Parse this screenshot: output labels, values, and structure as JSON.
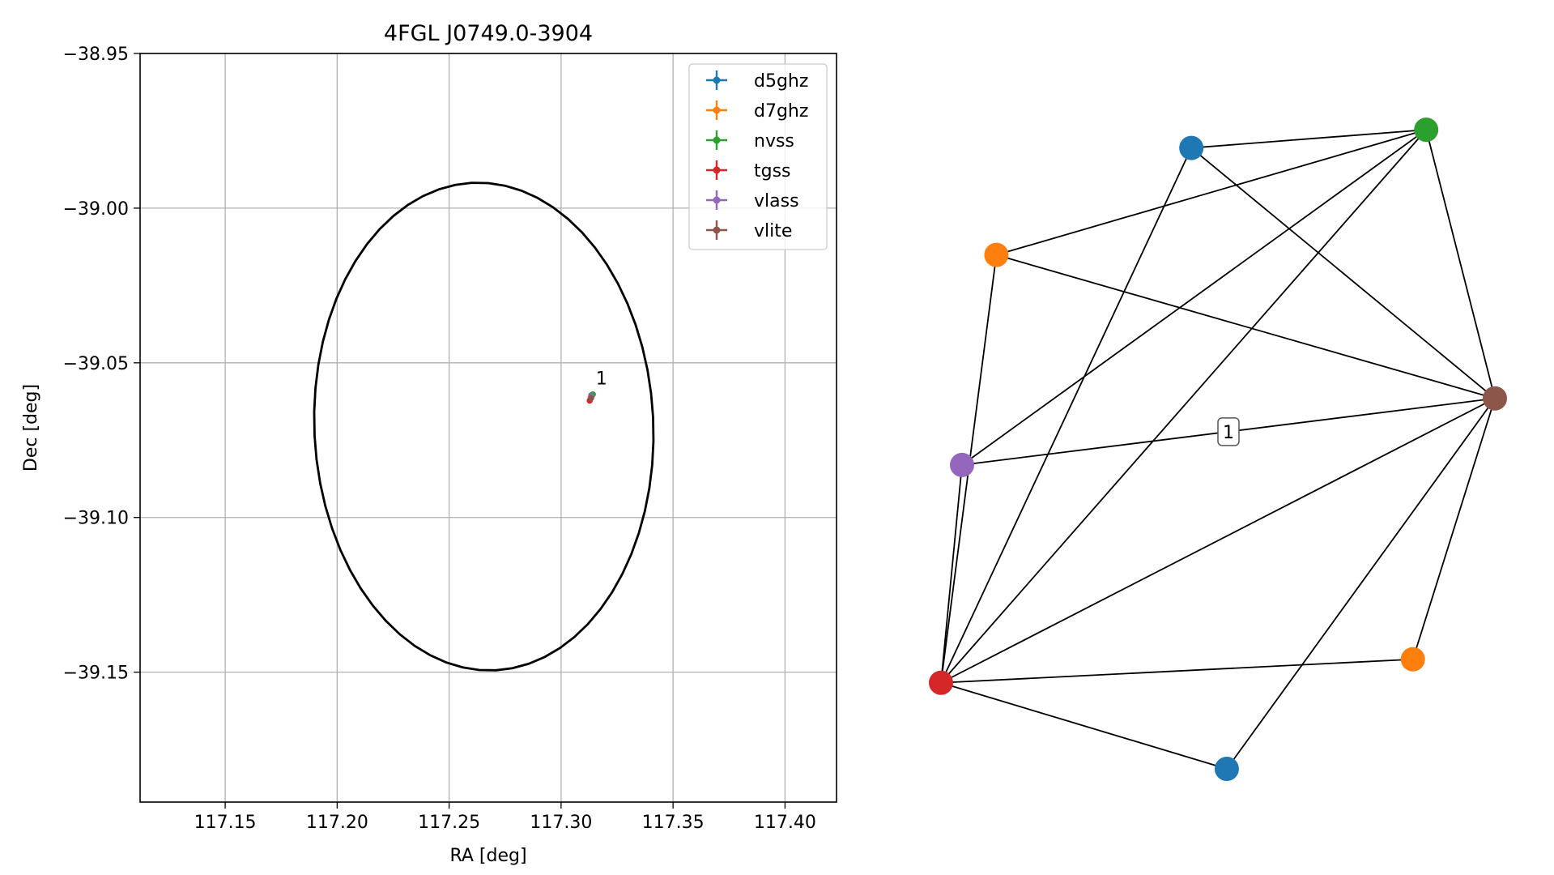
{
  "chart_data": [
    {
      "type": "scatter",
      "title": "4FGL J0749.0-3904",
      "xlabel": "RA [deg]",
      "ylabel": "Dec [deg]",
      "xlim": [
        117.112,
        117.423
      ],
      "ylim": [
        -39.192,
        -38.95
      ],
      "x_ticks": [
        117.15,
        117.2,
        117.25,
        117.3,
        117.35,
        117.4
      ],
      "x_tick_labels": [
        "117.15",
        "117.20",
        "117.25",
        "117.30",
        "117.35",
        "117.40"
      ],
      "y_ticks": [
        -38.95,
        -39.0,
        -39.05,
        -39.1,
        -39.15
      ],
      "y_tick_labels": [
        "−38.95",
        "−39.00",
        "−39.05",
        "−39.10",
        "−39.15"
      ],
      "grid": true,
      "legend_position": "top-right",
      "series": [
        {
          "name": "d5ghz",
          "color": "#1f77b4",
          "points": [
            {
              "x": 117.3135,
              "y": -39.0605
            }
          ]
        },
        {
          "name": "d7ghz",
          "color": "#ff7f0e",
          "points": [
            {
              "x": 117.3132,
              "y": -39.0612
            }
          ]
        },
        {
          "name": "nvss",
          "color": "#2ca02c",
          "points": [
            {
              "x": 117.3142,
              "y": -39.0602
            }
          ]
        },
        {
          "name": "tgss",
          "color": "#d62728",
          "points": [
            {
              "x": 117.3128,
              "y": -39.0622
            }
          ]
        },
        {
          "name": "vlass",
          "color": "#9467bd",
          "points": [
            {
              "x": 117.3136,
              "y": -39.0608
            }
          ]
        },
        {
          "name": "vlite",
          "color": "#8c564b",
          "points": [
            {
              "x": 117.3134,
              "y": -39.0614
            }
          ]
        }
      ],
      "annotations": [
        {
          "text": "1",
          "x": 117.3155,
          "y": -39.057
        }
      ],
      "ellipse": {
        "center_x": 117.2655,
        "center_y": -39.0706,
        "semi_major": 0.0793,
        "semi_minor": 0.0753,
        "angle_deg": -70,
        "color": "#000000"
      }
    },
    {
      "type": "network",
      "nodes": [
        {
          "id": "n0",
          "color": "#1f77b4",
          "x": 0.452,
          "y": 0.952
        },
        {
          "id": "n1",
          "color": "#ff7f0e",
          "x": 0.1,
          "y": 0.788
        },
        {
          "id": "n2",
          "color": "#2ca02c",
          "x": 0.876,
          "y": 0.98
        },
        {
          "id": "n3",
          "color": "#d62728",
          "x": 0.0,
          "y": 0.132
        },
        {
          "id": "n4",
          "color": "#9467bd",
          "x": 0.038,
          "y": 0.466
        },
        {
          "id": "n5",
          "color": "#8c564b",
          "x": 1.0,
          "y": 0.568
        },
        {
          "id": "n6",
          "color": "#ff7f0e",
          "x": 0.852,
          "y": 0.168
        },
        {
          "id": "n7",
          "color": "#1f77b4",
          "x": 0.516,
          "y": 0.0
        }
      ],
      "edges": [
        [
          "n0",
          "n2"
        ],
        [
          "n0",
          "n5"
        ],
        [
          "n0",
          "n3"
        ],
        [
          "n1",
          "n2"
        ],
        [
          "n1",
          "n5"
        ],
        [
          "n1",
          "n3"
        ],
        [
          "n2",
          "n4"
        ],
        [
          "n2",
          "n3"
        ],
        [
          "n2",
          "n5"
        ],
        [
          "n4",
          "n5"
        ],
        [
          "n4",
          "n3"
        ],
        [
          "n3",
          "n5"
        ],
        [
          "n3",
          "n6"
        ],
        [
          "n3",
          "n7"
        ],
        [
          "n5",
          "n6"
        ],
        [
          "n5",
          "n7"
        ]
      ],
      "edge_labels": [
        {
          "source": "n4",
          "target": "n5",
          "text": "1"
        }
      ]
    }
  ]
}
